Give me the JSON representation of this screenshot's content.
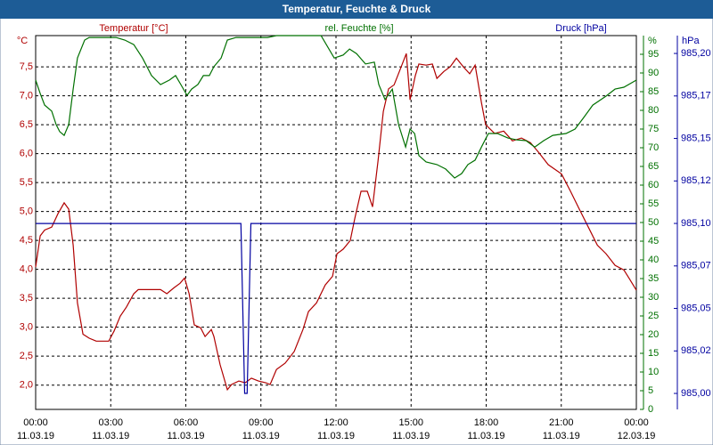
{
  "chart_data": {
    "type": "line",
    "title": "Temperatur, Feuchte & Druck",
    "ylabel": "°C",
    "y2label": "%",
    "y3label": "hPa",
    "xlim": [
      0,
      24
    ],
    "xticks": [
      {
        "value": 0,
        "label": "00:00",
        "date": "11.03.19"
      },
      {
        "value": 3,
        "label": "03:00",
        "date": "11.03.19"
      },
      {
        "value": 6,
        "label": "06:00",
        "date": "11.03.19"
      },
      {
        "value": 9,
        "label": "09:00",
        "date": "11.03.19"
      },
      {
        "value": 12,
        "label": "12:00",
        "date": "11.03.19"
      },
      {
        "value": 15,
        "label": "15:00",
        "date": "11.03.19"
      },
      {
        "value": 18,
        "label": "18:00",
        "date": "11.03.19"
      },
      {
        "value": 21,
        "label": "21:00",
        "date": "11.03.19"
      },
      {
        "value": 24,
        "label": "00:00",
        "date": "12.03.19"
      }
    ],
    "ylim": [
      1.58,
      8.04
    ],
    "yticks": [
      {
        "value": 2.0,
        "label": "2,0"
      },
      {
        "value": 2.5,
        "label": "2,5"
      },
      {
        "value": 3.0,
        "label": "3,0"
      },
      {
        "value": 3.5,
        "label": "3,5"
      },
      {
        "value": 4.0,
        "label": "4,0"
      },
      {
        "value": 4.5,
        "label": "4,5"
      },
      {
        "value": 5.0,
        "label": "5,0"
      },
      {
        "value": 5.5,
        "label": "5,5"
      },
      {
        "value": 6.0,
        "label": "6,0"
      },
      {
        "value": 6.5,
        "label": "6,5"
      },
      {
        "value": 7.0,
        "label": "7,0"
      },
      {
        "value": 7.5,
        "label": "7,5"
      }
    ],
    "y2lim": [
      0,
      100
    ],
    "y2ticks": [
      0,
      5,
      10,
      15,
      20,
      25,
      30,
      35,
      40,
      45,
      50,
      55,
      60,
      65,
      70,
      75,
      80,
      85,
      90,
      95
    ],
    "y3lim": [
      984.9906,
      985.2105
    ],
    "y3ticks": [
      {
        "value": 985.0,
        "label": "985,00"
      },
      {
        "value": 985.025,
        "label": "985,02"
      },
      {
        "value": 985.05,
        "label": "985,05"
      },
      {
        "value": 985.075,
        "label": "985,07"
      },
      {
        "value": 985.1,
        "label": "985,10"
      },
      {
        "value": 985.125,
        "label": "985,12"
      },
      {
        "value": 985.15,
        "label": "985,15"
      },
      {
        "value": 985.175,
        "label": "985,17"
      },
      {
        "value": 985.2,
        "label": "985,20"
      }
    ],
    "grid": true,
    "series": [
      {
        "name": "Temperatur [°C]",
        "color": "#b00000",
        "axis": "y",
        "x": [
          0,
          0.18,
          0.36,
          0.64,
          0.89,
          1.14,
          1.32,
          1.5,
          1.67,
          1.89,
          2.14,
          2.42,
          2.92,
          3.13,
          3.38,
          3.63,
          3.92,
          4.1,
          4.63,
          4.99,
          5.24,
          5.52,
          5.77,
          5.95,
          6.13,
          6.34,
          6.59,
          6.77,
          7.02,
          7.12,
          7.37,
          7.66,
          7.83,
          8.12,
          8.37,
          8.62,
          8.9,
          9.19,
          9.37,
          9.62,
          9.97,
          10.33,
          10.68,
          10.9,
          11.22,
          11.57,
          11.86,
          12.04,
          12.29,
          12.57,
          12.75,
          13.0,
          13.25,
          13.46,
          13.68,
          13.89,
          14.1,
          14.32,
          14.53,
          14.81,
          14.96,
          15.17,
          15.31,
          15.6,
          15.85,
          16.03,
          16.31,
          16.56,
          16.81,
          17.09,
          17.34,
          17.56,
          17.81,
          17.98,
          18.34,
          18.7,
          19.05,
          19.41,
          19.77,
          20.12,
          20.48,
          21.01,
          21.37,
          21.72,
          22.08,
          22.44,
          22.79,
          23.15,
          23.5,
          23.72,
          24
        ],
        "values": [
          4.04,
          4.58,
          4.68,
          4.73,
          4.96,
          5.15,
          5.04,
          4.42,
          3.42,
          2.88,
          2.81,
          2.76,
          2.76,
          2.93,
          3.19,
          3.35,
          3.58,
          3.65,
          3.65,
          3.65,
          3.58,
          3.68,
          3.76,
          3.85,
          3.58,
          3.04,
          2.99,
          2.84,
          2.96,
          2.84,
          2.35,
          1.92,
          2.01,
          2.07,
          2.04,
          2.12,
          2.07,
          2.04,
          2.01,
          2.27,
          2.38,
          2.58,
          2.96,
          3.27,
          3.42,
          3.73,
          3.88,
          4.27,
          4.35,
          4.5,
          4.88,
          5.35,
          5.35,
          5.08,
          5.88,
          6.73,
          7.12,
          7.19,
          7.42,
          7.73,
          6.93,
          7.35,
          7.55,
          7.53,
          7.55,
          7.3,
          7.42,
          7.5,
          7.65,
          7.5,
          7.38,
          7.53,
          6.88,
          6.5,
          6.35,
          6.39,
          6.22,
          6.27,
          6.19,
          6.01,
          5.81,
          5.65,
          5.35,
          5.04,
          4.73,
          4.42,
          4.27,
          4.07,
          3.99,
          3.84,
          3.64
        ]
      },
      {
        "name": "rel. Feuchte [%]",
        "color": "#007000",
        "axis": "y2",
        "x": [
          0,
          0.18,
          0.36,
          0.64,
          0.82,
          0.96,
          1.14,
          1.32,
          1.5,
          1.67,
          1.96,
          2.14,
          3.21,
          3.56,
          3.92,
          4.27,
          4.63,
          4.99,
          5.34,
          5.59,
          5.8,
          6.05,
          6.23,
          6.48,
          6.7,
          6.94,
          7.12,
          7.41,
          7.66,
          8.01,
          9.26,
          9.62,
          11.4,
          11.93,
          12.29,
          12.54,
          12.82,
          13.18,
          13.53,
          13.71,
          13.96,
          14.25,
          14.5,
          14.78,
          14.96,
          15.14,
          15.31,
          15.6,
          16.03,
          16.38,
          16.74,
          17.02,
          17.27,
          17.56,
          17.81,
          18.09,
          18.45,
          18.87,
          19.23,
          19.59,
          19.94,
          20.3,
          20.66,
          21.19,
          21.55,
          21.9,
          22.26,
          22.79,
          23.15,
          23.5,
          24
        ],
        "values": [
          88.1,
          84.5,
          81.4,
          79.8,
          76.2,
          74.3,
          73.3,
          76.2,
          85.7,
          94.0,
          98.8,
          99.5,
          99.5,
          98.8,
          97.6,
          94.0,
          89.3,
          86.9,
          88.1,
          89.3,
          86.9,
          84.0,
          85.7,
          86.9,
          89.3,
          89.3,
          91.7,
          94.0,
          98.8,
          99.5,
          99.5,
          100,
          100,
          94.0,
          94.8,
          96.4,
          95.2,
          92.4,
          92.9,
          86.9,
          82.9,
          85.7,
          76.2,
          70.2,
          75.0,
          73.8,
          67.9,
          66.2,
          65.5,
          64.3,
          61.9,
          63.1,
          65.5,
          66.7,
          70.2,
          73.8,
          73.8,
          72.6,
          72.1,
          71.9,
          70.2,
          71.9,
          73.3,
          73.8,
          75.0,
          78.1,
          81.4,
          83.8,
          85.7,
          86.2,
          88.1
        ]
      },
      {
        "name": "Druck [hPa]",
        "color": "#0000a0",
        "axis": "y3",
        "x": [
          0,
          8.2,
          8.35,
          8.45,
          8.6,
          24
        ],
        "values": [
          985.1,
          985.1,
          985.0,
          985.0,
          985.1,
          985.1
        ]
      }
    ]
  }
}
